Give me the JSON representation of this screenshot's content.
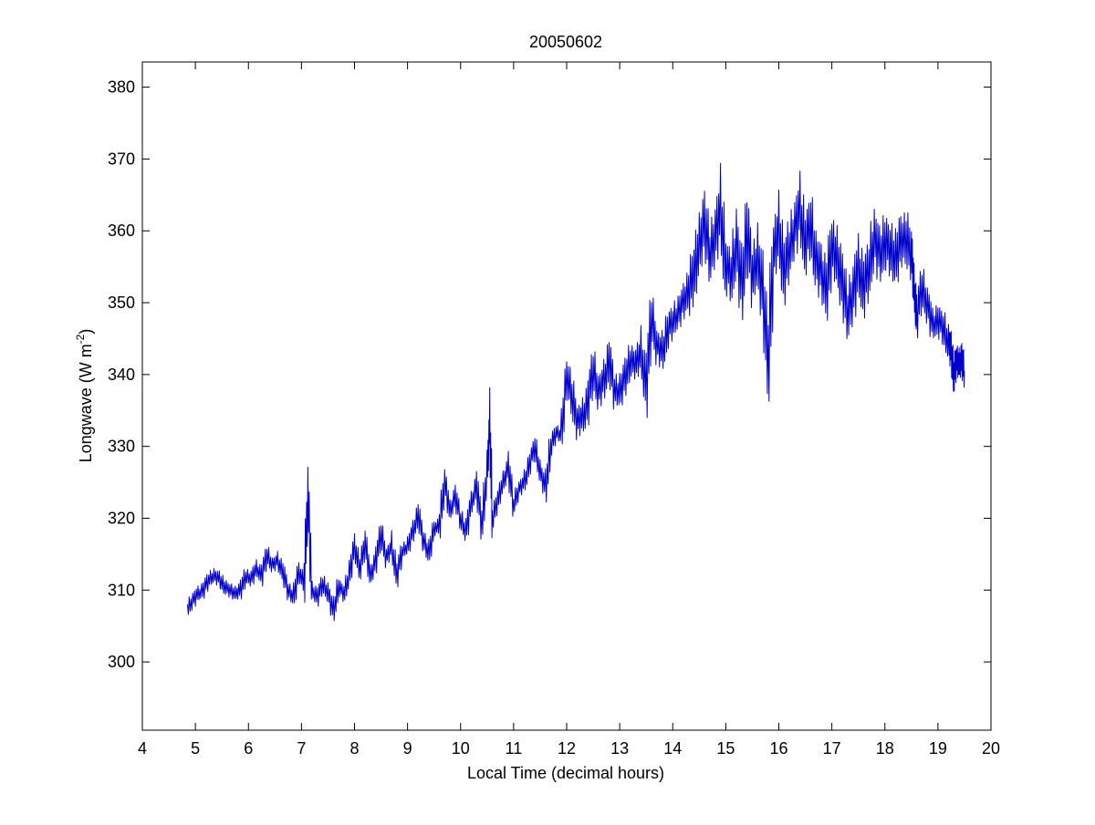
{
  "chart_data": {
    "type": "line",
    "title": "20050602",
    "xlabel": "Local Time (decimal hours)",
    "ylabel_main": "Longwave (W m",
    "ylabel_sup": "-2",
    "ylabel_tail": ")",
    "xlim": [
      4,
      20
    ],
    "ylim": [
      290.5,
      383.5
    ],
    "xticks": [
      4,
      5,
      6,
      7,
      8,
      9,
      10,
      11,
      12,
      13,
      14,
      15,
      16,
      17,
      18,
      19,
      20
    ],
    "yticks": [
      300,
      310,
      320,
      330,
      340,
      350,
      360,
      370,
      380
    ],
    "grid": false,
    "series": [
      {
        "color": "#0000cc",
        "x": [
          4.85,
          4.95,
          5.05,
          5.15,
          5.25,
          5.35,
          5.45,
          5.55,
          5.65,
          5.75,
          5.85,
          5.95,
          6.05,
          6.15,
          6.25,
          6.35,
          6.45,
          6.55,
          6.65,
          6.75,
          6.85,
          6.95,
          7.05,
          7.12,
          7.2,
          7.3,
          7.4,
          7.5,
          7.6,
          7.7,
          7.8,
          7.9,
          8.0,
          8.1,
          8.2,
          8.3,
          8.4,
          8.5,
          8.6,
          8.7,
          8.8,
          8.9,
          9.0,
          9.1,
          9.2,
          9.3,
          9.4,
          9.5,
          9.6,
          9.7,
          9.8,
          9.9,
          10.0,
          10.1,
          10.2,
          10.3,
          10.4,
          10.5,
          10.55,
          10.6,
          10.7,
          10.8,
          10.9,
          11.0,
          11.1,
          11.2,
          11.3,
          11.4,
          11.5,
          11.6,
          11.7,
          11.8,
          11.9,
          12.0,
          12.1,
          12.2,
          12.3,
          12.4,
          12.5,
          12.6,
          12.7,
          12.8,
          12.9,
          13.0,
          13.1,
          13.2,
          13.3,
          13.4,
          13.5,
          13.6,
          13.7,
          13.8,
          13.9,
          14.0,
          14.1,
          14.2,
          14.3,
          14.4,
          14.5,
          14.6,
          14.7,
          14.8,
          14.9,
          15.0,
          15.1,
          15.2,
          15.3,
          15.4,
          15.5,
          15.6,
          15.7,
          15.8,
          15.9,
          16.0,
          16.1,
          16.2,
          16.3,
          16.4,
          16.5,
          16.6,
          16.7,
          16.8,
          16.9,
          17.0,
          17.1,
          17.2,
          17.3,
          17.4,
          17.5,
          17.6,
          17.7,
          17.8,
          17.9,
          18.0,
          18.1,
          18.2,
          18.3,
          18.4,
          18.5,
          18.55,
          18.6,
          18.7,
          18.8,
          18.9,
          19.0,
          19.1,
          19.2,
          19.25,
          19.3,
          19.35,
          19.4,
          19.45,
          19.5
        ],
        "y": [
          307.5,
          308.5,
          309.5,
          310.0,
          311.5,
          312.0,
          311.5,
          310.5,
          310.0,
          309.5,
          310.0,
          312.0,
          311.5,
          313.0,
          312.0,
          315.0,
          313.5,
          314.0,
          312.5,
          310.0,
          309.0,
          312.5,
          311.0,
          323.0,
          310.0,
          309.0,
          311.0,
          309.5,
          307.0,
          310.5,
          309.5,
          312.0,
          316.0,
          313.0,
          316.5,
          312.0,
          314.0,
          318.0,
          314.5,
          316.0,
          312.0,
          315.5,
          316.0,
          318.0,
          320.5,
          317.0,
          315.0,
          318.5,
          319.0,
          325.0,
          321.0,
          323.0,
          320.0,
          318.0,
          322.0,
          324.5,
          319.0,
          326.5,
          333.0,
          320.0,
          322.5,
          325.0,
          327.0,
          322.0,
          324.0,
          325.0,
          327.5,
          330.0,
          326.5,
          324.0,
          330.0,
          332.0,
          331.5,
          340.0,
          337.0,
          333.5,
          334.0,
          336.0,
          341.0,
          337.5,
          339.0,
          342.0,
          338.0,
          337.5,
          339.5,
          342.0,
          341.5,
          343.0,
          338.0,
          348.5,
          344.0,
          343.0,
          346.0,
          347.5,
          348.5,
          350.0,
          352.0,
          354.0,
          358.0,
          361.0,
          357.0,
          359.0,
          363.0,
          355.0,
          354.0,
          358.0,
          352.0,
          360.0,
          354.0,
          356.0,
          351.0,
          342.0,
          357.0,
          360.0,
          354.0,
          358.0,
          360.0,
          363.0,
          358.0,
          361.0,
          356.0,
          354.0,
          352.0,
          358.0,
          356.0,
          352.5,
          349.0,
          351.0,
          355.0,
          352.0,
          355.0,
          359.0,
          356.5,
          358.5,
          357.5,
          356.0,
          358.5,
          359.0,
          357.0,
          352.0,
          348.0,
          352.5,
          349.5,
          347.0,
          347.5,
          346.5,
          344.5,
          343.0,
          340.0,
          342.0,
          341.5,
          342.0,
          340.5
        ]
      }
    ]
  }
}
